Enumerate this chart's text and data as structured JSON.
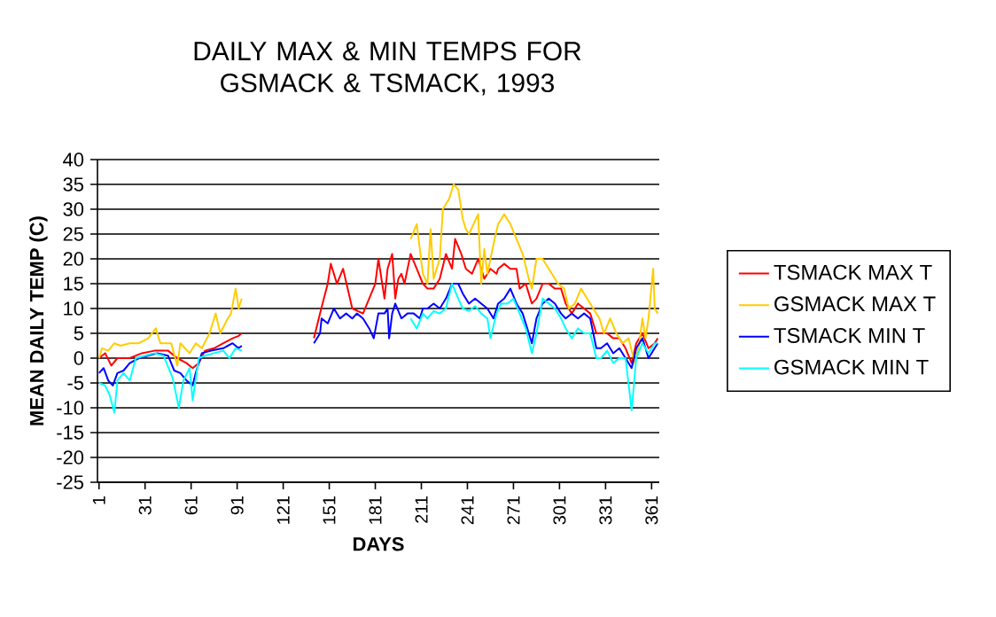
{
  "chart_data": {
    "type": "line",
    "title": "DAILY MAX & MIN TEMPS FOR GSMACK & TSMACK, 1993",
    "xlabel": "DAYS",
    "ylabel": "MEAN DAILY TEMP (C)",
    "xlim": [
      0,
      366
    ],
    "ylim": [
      -25,
      40
    ],
    "xticks": [
      1,
      31,
      61,
      91,
      121,
      151,
      181,
      211,
      241,
      271,
      301,
      331,
      361
    ],
    "yticks": [
      -25,
      -20,
      -15,
      -10,
      -5,
      0,
      5,
      10,
      15,
      20,
      25,
      30,
      35,
      40
    ],
    "grid": "y",
    "legend": "right",
    "marker": "none",
    "line_style": "solid",
    "series": [
      {
        "name": "TSMACK MAX T",
        "color": "#ff0000",
        "x": [
          1,
          5,
          9,
          13,
          21,
          29,
          37,
          46,
          52,
          58,
          62,
          66,
          70,
          76,
          82,
          88,
          92,
          94,
          120,
          141,
          145,
          150,
          152,
          156,
          160,
          166,
          173,
          181,
          183,
          187,
          189,
          192,
          194,
          196,
          198,
          200,
          204,
          208,
          212,
          215,
          219,
          223,
          227,
          231,
          233,
          237,
          240,
          244,
          248,
          252,
          256,
          260,
          261,
          265,
          269,
          273,
          275,
          279,
          283,
          286,
          290,
          294,
          298,
          302,
          305,
          309,
          313,
          317,
          321,
          325,
          328,
          332,
          336,
          340,
          344,
          348,
          351,
          355,
          359,
          363,
          365
        ],
        "values": [
          0,
          1,
          -1.5,
          0,
          0,
          1,
          1.5,
          1.5,
          0,
          -1,
          -2,
          -1,
          1.5,
          2,
          3,
          4,
          4.5,
          5,
          null,
          4,
          9,
          15,
          19,
          15,
          18,
          10,
          9,
          15,
          20,
          12,
          18,
          21,
          12,
          16,
          17,
          15,
          21,
          18,
          15,
          14,
          14,
          16,
          21,
          18,
          24,
          21,
          18,
          17,
          20,
          16,
          18,
          17,
          18,
          19,
          18,
          18,
          14,
          15,
          11,
          12,
          15,
          15,
          14,
          14,
          11,
          9,
          11,
          10,
          9,
          5,
          5,
          5,
          4,
          4,
          2,
          -1,
          3,
          5,
          2,
          3,
          4
        ]
      },
      {
        "name": "GSMACK MAX T",
        "color": "#ffcc00",
        "x": [
          1,
          3,
          7,
          11,
          15,
          21,
          27,
          33,
          38,
          41,
          48,
          52,
          54,
          60,
          64,
          68,
          73,
          77,
          80,
          84,
          87,
          90,
          92,
          94,
          150,
          204,
          208,
          212,
          215,
          217,
          219,
          223,
          225,
          229,
          232,
          235,
          238,
          240,
          242,
          248,
          250,
          252,
          254,
          258,
          261,
          265,
          269,
          273,
          277,
          281,
          283,
          286,
          290,
          294,
          296,
          300,
          304,
          307,
          311,
          315,
          319,
          323,
          327,
          330,
          334,
          338,
          342,
          346,
          350,
          353,
          355,
          357,
          359,
          362,
          363,
          365
        ],
        "values": [
          0,
          2,
          1.5,
          3,
          2.5,
          3,
          3,
          4,
          6,
          3,
          3,
          -1.5,
          3,
          1,
          3,
          2,
          5,
          9,
          5,
          7.5,
          9,
          14,
          10,
          12,
          null,
          24,
          27,
          17,
          15,
          26,
          16,
          20,
          30,
          32,
          35,
          34,
          28,
          26,
          25,
          29,
          15,
          22,
          17,
          23,
          27,
          29,
          27,
          24,
          21,
          16,
          14,
          20,
          20,
          18,
          17,
          15,
          14,
          10,
          11,
          14,
          12,
          10,
          8,
          5,
          8,
          5,
          3,
          4,
          -1,
          3,
          8,
          4,
          8,
          18,
          10,
          9
        ]
      },
      {
        "name": "TSMACK MIN T",
        "color": "#0000ff",
        "x": [
          1,
          4,
          7,
          10,
          13,
          17,
          21,
          27,
          33,
          39,
          46,
          50,
          54,
          58,
          62,
          64,
          68,
          74,
          82,
          88,
          92,
          94,
          120,
          141,
          145,
          146,
          150,
          154,
          158,
          162,
          166,
          169,
          173,
          177,
          180,
          183,
          187,
          189,
          190,
          192,
          194,
          198,
          202,
          206,
          210,
          212,
          215,
          219,
          223,
          227,
          231,
          235,
          238,
          242,
          246,
          250,
          254,
          258,
          261,
          265,
          269,
          273,
          277,
          281,
          283,
          286,
          290,
          294,
          298,
          302,
          305,
          309,
          313,
          317,
          321,
          325,
          328,
          332,
          336,
          340,
          344,
          348,
          351,
          355,
          359,
          363,
          365
        ],
        "values": [
          -3,
          -2,
          -4.5,
          -5.5,
          -3,
          -2.5,
          -1,
          0,
          0.5,
          1,
          0.5,
          -2.5,
          -3,
          -4.5,
          -5.5,
          -3,
          1,
          1.5,
          2,
          3,
          2,
          2.5,
          null,
          3,
          5,
          8,
          7,
          10,
          8,
          9,
          8,
          9,
          8,
          6,
          4,
          9,
          9,
          10,
          4,
          9,
          11,
          8,
          9,
          9,
          8,
          10,
          10,
          11,
          10,
          12,
          15,
          15,
          13,
          11,
          12,
          11,
          10,
          8,
          11,
          12,
          14,
          11,
          9,
          5,
          3,
          8,
          11,
          12,
          11,
          9,
          8,
          9,
          8,
          9,
          8,
          2,
          2,
          3,
          1,
          2,
          0,
          -2,
          2,
          4,
          0,
          2,
          3
        ]
      },
      {
        "name": "GSMACK MIN T",
        "color": "#00ffff",
        "x": [
          1,
          5,
          8,
          11,
          13,
          17,
          21,
          25,
          31,
          37,
          43,
          49,
          53,
          56,
          60,
          62,
          66,
          70,
          76,
          82,
          86,
          90,
          94,
          150,
          204,
          208,
          212,
          215,
          219,
          223,
          227,
          231,
          235,
          238,
          242,
          246,
          250,
          254,
          256,
          260,
          263,
          267,
          271,
          275,
          279,
          283,
          286,
          290,
          294,
          298,
          302,
          305,
          309,
          313,
          317,
          321,
          325,
          328,
          332,
          336,
          340,
          344,
          348,
          351,
          355,
          359,
          363,
          365
        ],
        "values": [
          -5,
          -5.5,
          -7.5,
          -11,
          -4.5,
          -3,
          -4.5,
          0,
          0.5,
          1,
          0.5,
          -4,
          -10,
          -4.5,
          -2,
          -8.5,
          0,
          0.5,
          1,
          1.5,
          0,
          2,
          1.5,
          null,
          8,
          6,
          9,
          8,
          9.5,
          9,
          10,
          15,
          12,
          10,
          9.5,
          10.5,
          9,
          8,
          4,
          9,
          11,
          11,
          12,
          9,
          6,
          1,
          5,
          12,
          11,
          10,
          8,
          6,
          4,
          6,
          5,
          5,
          0,
          0,
          1.5,
          -1,
          0,
          0,
          -10.5,
          0,
          3,
          1,
          3,
          3
        ]
      }
    ]
  }
}
